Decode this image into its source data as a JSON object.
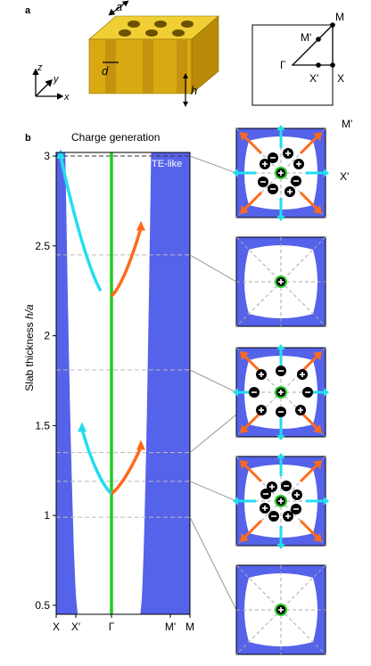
{
  "panel_labels": {
    "a": "a",
    "b": "b"
  },
  "schematic": {
    "axes": {
      "z": "z",
      "y": "y",
      "x": "x"
    },
    "dims": {
      "a": "a",
      "d": "d",
      "h": "h"
    },
    "slab_color": "#e3b81c"
  },
  "brillouin_zone": {
    "M": "M",
    "M_prime": "M'",
    "Gamma": "Γ",
    "X_prime": "X'",
    "X": "X"
  },
  "plot": {
    "title": "Charge generation",
    "region_label": "TE-like",
    "ylabel_pre": "Slab thickness ",
    "ylabel_var": "h/a",
    "xticks": [
      "X",
      "X'",
      "Γ",
      "M'",
      "M"
    ],
    "yticks": [
      "0.5",
      "1",
      "1.5",
      "2",
      "2.5",
      "3"
    ],
    "colors": {
      "band": "#5562ea",
      "gamma_line": "#22cc22",
      "cyan": "#22ddee",
      "orange": "#ff6a1a"
    }
  },
  "chart_data": {
    "type": "line",
    "title": "Charge generation",
    "ylabel": "Slab thickness h/a",
    "xlabel": "",
    "x_categories": [
      "X",
      "X'",
      "Γ",
      "M'",
      "M"
    ],
    "ylim": [
      0.45,
      3.02
    ],
    "series": [
      {
        "x": [
          -0.95,
          -0.7,
          -0.4,
          -0.2,
          0
        ],
        "y": [
          3.0,
          2.65,
          2.35,
          2.25,
          2.22
        ]
      },
      {
        "x": [
          0,
          0.2,
          0.4,
          0.55
        ],
        "y": [
          2.22,
          2.28,
          2.45,
          2.6
        ]
      },
      {
        "x": [
          -0.55,
          -0.4,
          -0.2,
          0
        ],
        "y": [
          1.48,
          1.32,
          1.18,
          1.12
        ]
      },
      {
        "x": [
          0,
          0.2,
          0.4,
          0.55
        ],
        "y": [
          1.12,
          1.17,
          1.28,
          1.38
        ]
      }
    ],
    "dashed_levels": [
      3.0,
      2.45,
      1.81,
      1.35,
      1.19,
      0.99
    ]
  },
  "insets": [
    {
      "label_top": "M'",
      "label_side": "X'",
      "charges": [
        {
          "dx": -9,
          "dy": -17,
          "s": "-"
        },
        {
          "dx": 20,
          "dy": -10,
          "s": "+"
        },
        {
          "dx": 17,
          "dy": 9,
          "s": "-"
        },
        {
          "dx": 10,
          "dy": 21,
          "s": "+"
        },
        {
          "dx": -9,
          "dy": 18,
          "s": "-"
        },
        {
          "dx": -20,
          "dy": 10,
          "s": "-"
        },
        {
          "dx": -18,
          "dy": -10,
          "s": "+"
        },
        {
          "dx": 8,
          "dy": -22,
          "s": "+"
        }
      ]
    },
    {
      "charges": []
    },
    {
      "charges": [
        {
          "dx": 0,
          "dy": -24,
          "s": "-"
        },
        {
          "dx": 24,
          "dy": -20,
          "s": "+"
        },
        {
          "dx": 30,
          "dy": 0,
          "s": "-"
        },
        {
          "dx": 22,
          "dy": 20,
          "s": "+"
        },
        {
          "dx": 0,
          "dy": 22,
          "s": "-"
        },
        {
          "dx": -22,
          "dy": 20,
          "s": "+"
        },
        {
          "dx": -30,
          "dy": 0,
          "s": "-"
        },
        {
          "dx": -22,
          "dy": -20,
          "s": "+"
        }
      ]
    },
    {
      "charges": [
        {
          "dx": -10,
          "dy": -16,
          "s": "+"
        },
        {
          "dx": 6,
          "dy": -17,
          "s": "-"
        },
        {
          "dx": 18,
          "dy": -7,
          "s": "+"
        },
        {
          "dx": 17,
          "dy": 9,
          "s": "-"
        },
        {
          "dx": 8,
          "dy": 17,
          "s": "+"
        },
        {
          "dx": -8,
          "dy": 17,
          "s": "-"
        },
        {
          "dx": -18,
          "dy": 8,
          "s": "+"
        },
        {
          "dx": -17,
          "dy": -8,
          "s": "-"
        }
      ]
    },
    {
      "charges": []
    }
  ]
}
